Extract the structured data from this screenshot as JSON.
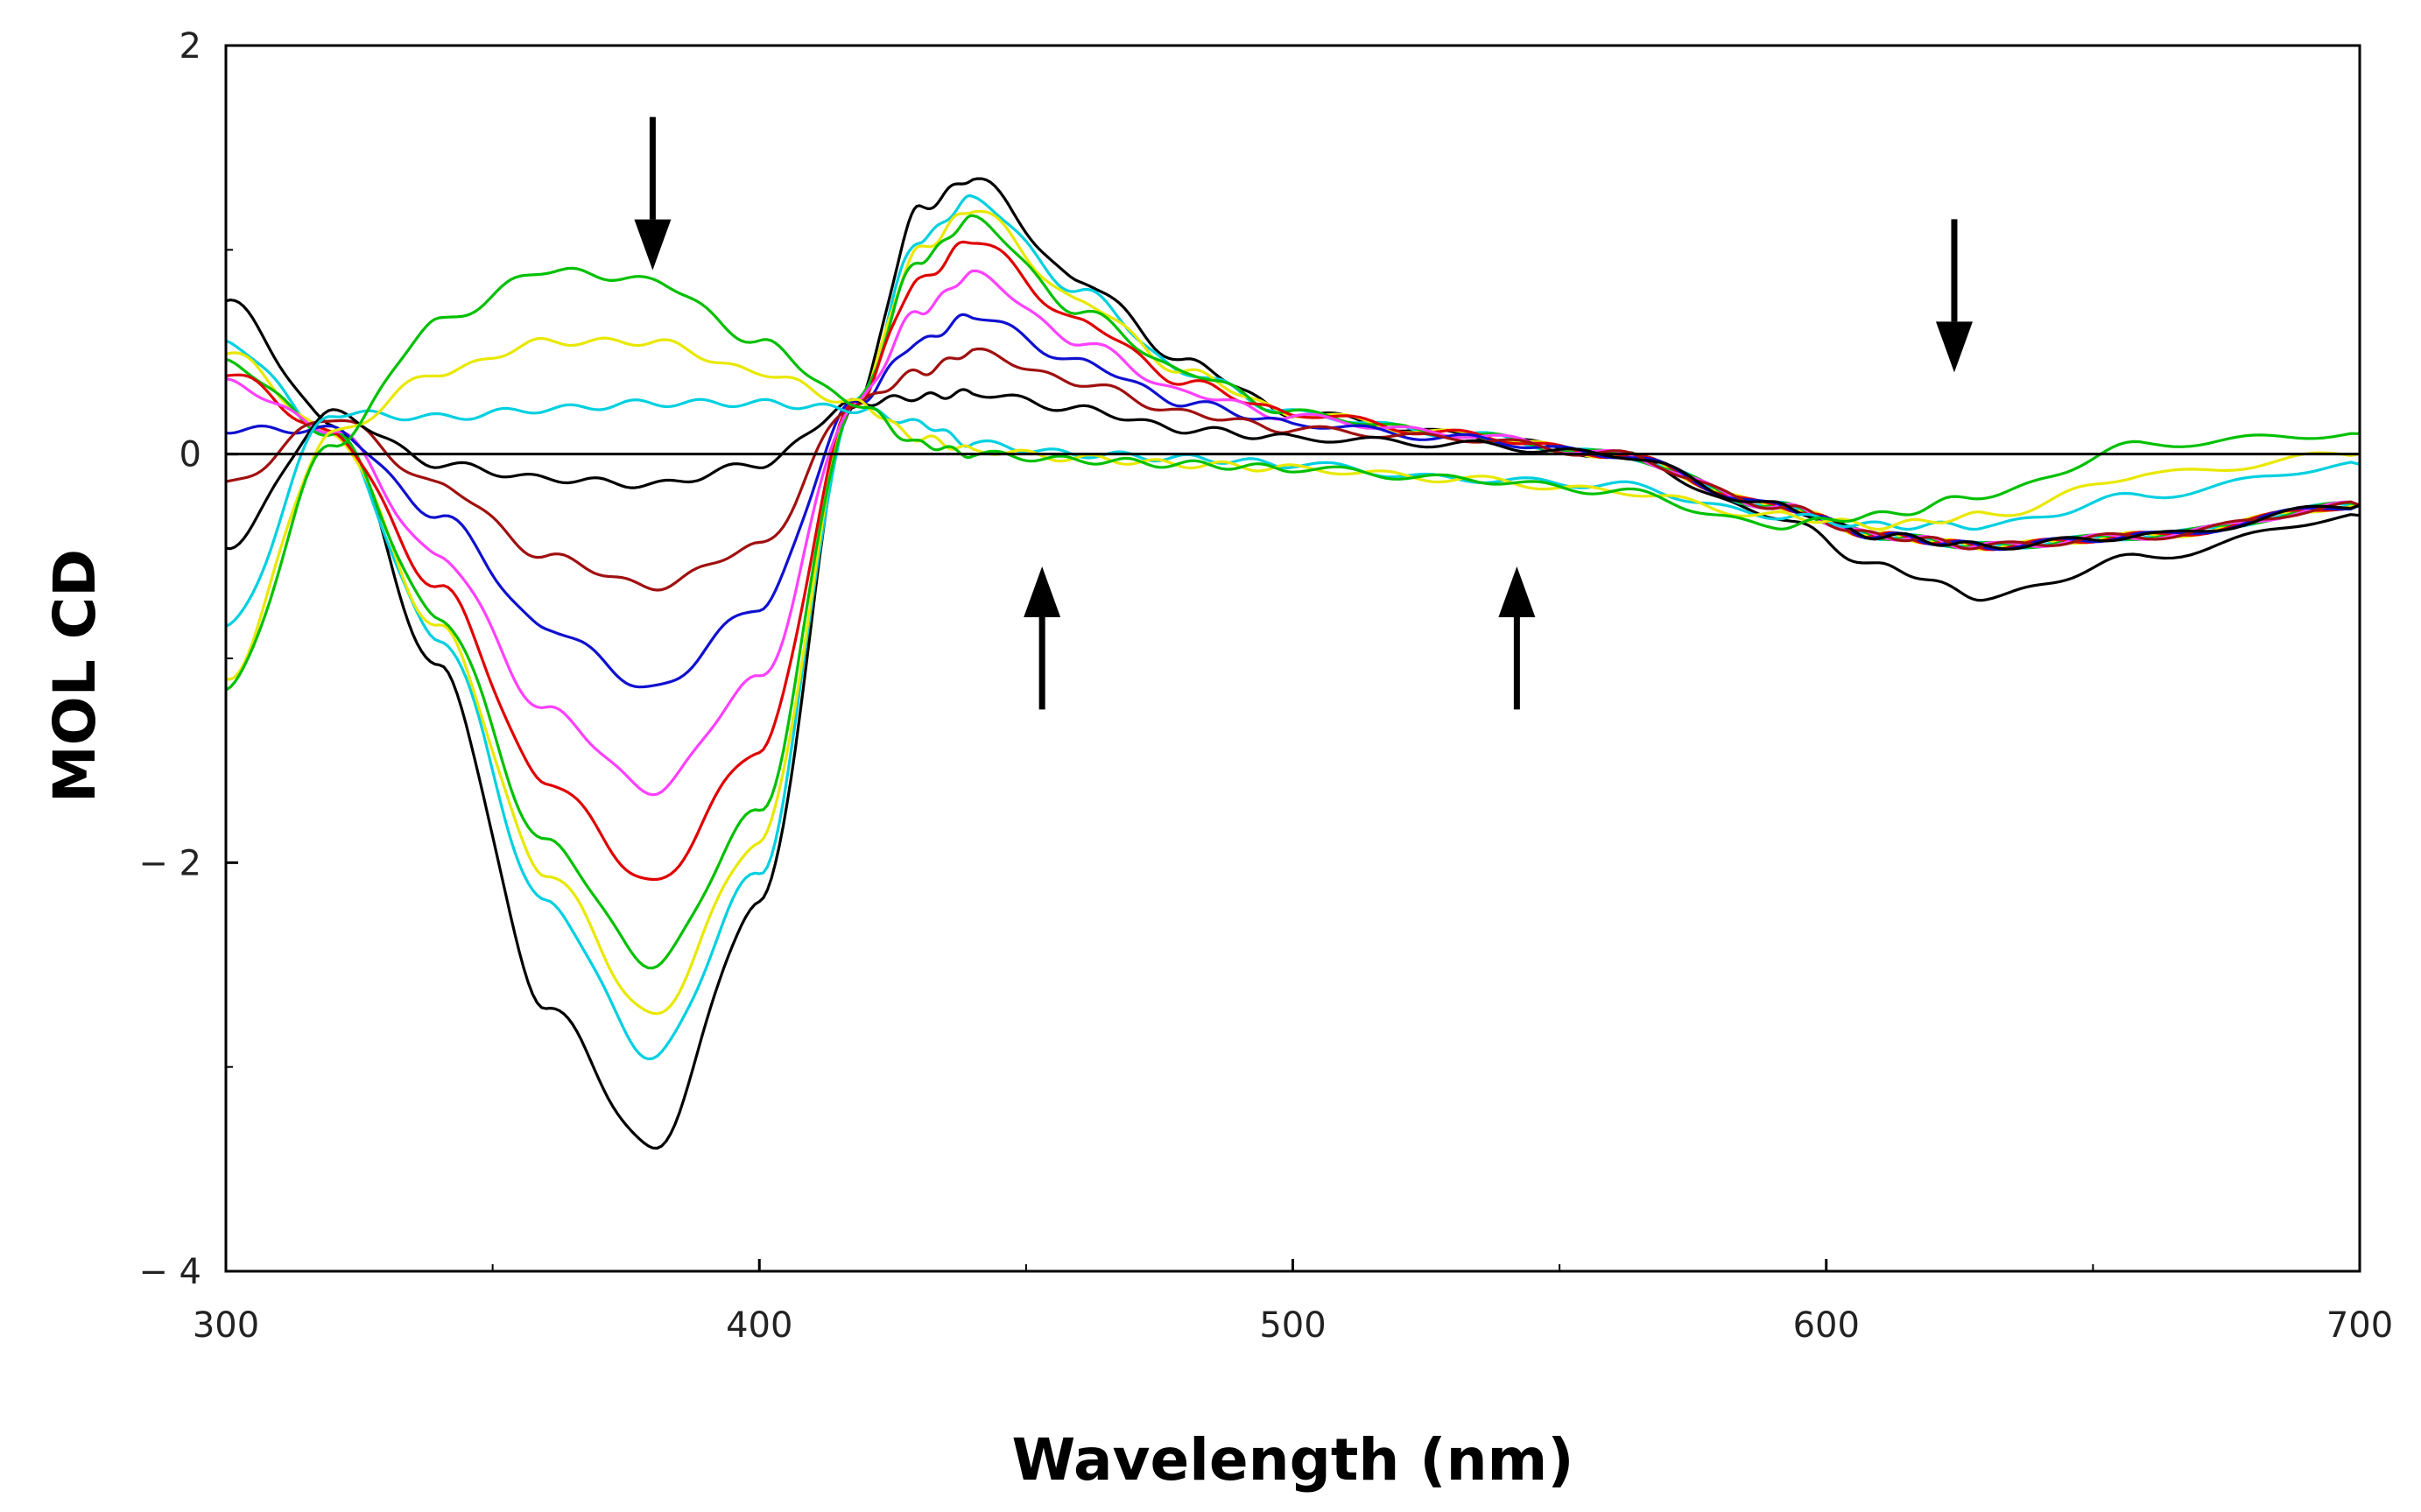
{
  "chart_data": {
    "type": "line",
    "title": "",
    "xlabel": "Wavelength (nm)",
    "ylabel": "MOL CD",
    "xlim": [
      300,
      700
    ],
    "ylim": [
      -4,
      2
    ],
    "x_ticks": [
      300,
      400,
      500,
      600,
      700
    ],
    "y_ticks": [
      2,
      0,
      -2,
      -4
    ],
    "x_tick_labels": [
      "300",
      "400",
      "500",
      "600",
      "700"
    ],
    "y_tick_labels": [
      "2",
      "0",
      "− 2",
      "− 4"
    ],
    "grid": false,
    "legend": "none",
    "x": [
      300,
      320,
      340,
      360,
      380,
      400,
      418,
      430,
      440,
      460,
      480,
      500,
      530,
      560,
      590,
      610,
      630,
      660,
      700
    ],
    "series": [
      {
        "name": "black-start",
        "color": "#000000",
        "values": [
          0.75,
          0.15,
          -1.05,
          -2.7,
          -3.4,
          -2.2,
          0.25,
          1.2,
          1.35,
          0.85,
          0.45,
          0.2,
          0.1,
          0.0,
          -0.3,
          -0.55,
          -0.7,
          -0.5,
          -0.3
        ]
      },
      {
        "name": "cyan-1",
        "color": "#00d0e0",
        "values": [
          0.55,
          0.1,
          -0.9,
          -2.2,
          -2.95,
          -2.05,
          0.25,
          1.05,
          1.25,
          0.8,
          0.4,
          0.2,
          0.1,
          0.0,
          -0.25,
          -0.4,
          -0.45,
          -0.4,
          -0.25
        ]
      },
      {
        "name": "yellow-1",
        "color": "#e8e800",
        "values": [
          0.5,
          0.1,
          -0.85,
          -2.05,
          -2.75,
          -1.9,
          0.25,
          1.0,
          1.2,
          0.75,
          0.4,
          0.2,
          0.1,
          0.0,
          -0.25,
          -0.4,
          -0.45,
          -0.4,
          -0.25
        ]
      },
      {
        "name": "green-1",
        "color": "#00c000",
        "values": [
          0.45,
          0.1,
          -0.8,
          -1.9,
          -2.5,
          -1.75,
          0.25,
          0.95,
          1.15,
          0.7,
          0.4,
          0.2,
          0.1,
          0.0,
          -0.25,
          -0.4,
          -0.45,
          -0.4,
          -0.25
        ]
      },
      {
        "name": "red",
        "color": "#e00000",
        "values": [
          0.4,
          0.1,
          -0.65,
          -1.6,
          -2.1,
          -1.45,
          0.25,
          0.85,
          1.05,
          0.65,
          0.35,
          0.2,
          0.1,
          0.0,
          -0.25,
          -0.4,
          -0.45,
          -0.4,
          -0.25
        ]
      },
      {
        "name": "magenta",
        "color": "#ff40ff",
        "values": [
          0.35,
          0.12,
          -0.5,
          -1.25,
          -1.65,
          -1.1,
          0.25,
          0.7,
          0.88,
          0.55,
          0.3,
          0.18,
          0.1,
          0.0,
          -0.25,
          -0.4,
          -0.45,
          -0.4,
          -0.25
        ]
      },
      {
        "name": "blue",
        "color": "#1010d0",
        "values": [
          0.12,
          0.12,
          -0.3,
          -0.85,
          -1.15,
          -0.75,
          0.25,
          0.55,
          0.68,
          0.45,
          0.25,
          0.15,
          0.08,
          0.0,
          -0.25,
          -0.4,
          -0.45,
          -0.4,
          -0.25
        ]
      },
      {
        "name": "dark-red",
        "color": "#a01010",
        "values": [
          -0.15,
          0.18,
          -0.15,
          -0.5,
          -0.65,
          -0.45,
          0.25,
          0.4,
          0.5,
          0.35,
          0.2,
          0.12,
          0.08,
          0.0,
          -0.25,
          -0.4,
          -0.45,
          -0.4,
          -0.25
        ]
      },
      {
        "name": "black-mid",
        "color": "#000000",
        "values": [
          -0.45,
          0.2,
          -0.05,
          -0.12,
          -0.15,
          -0.05,
          0.25,
          0.28,
          0.3,
          0.22,
          0.12,
          0.08,
          0.05,
          0.0,
          -0.25,
          -0.4,
          -0.45,
          -0.4,
          -0.25
        ]
      },
      {
        "name": "cyan-2",
        "color": "#00d0e0",
        "values": [
          -0.85,
          0.2,
          0.18,
          0.22,
          0.25,
          0.25,
          0.22,
          0.15,
          0.05,
          0.0,
          -0.02,
          -0.05,
          -0.12,
          -0.15,
          -0.3,
          -0.35,
          -0.35,
          -0.2,
          -0.05
        ]
      },
      {
        "name": "yellow-2",
        "color": "#e8e800",
        "values": [
          -1.1,
          0.1,
          0.4,
          0.55,
          0.55,
          0.4,
          0.25,
          0.08,
          0.02,
          -0.02,
          -0.05,
          -0.07,
          -0.12,
          -0.18,
          -0.3,
          -0.35,
          -0.3,
          -0.1,
          0.0
        ]
      },
      {
        "name": "green-2",
        "color": "#00c000",
        "values": [
          -1.15,
          0.05,
          0.65,
          0.9,
          0.85,
          0.55,
          0.25,
          0.05,
          0.0,
          -0.03,
          -0.05,
          -0.07,
          -0.12,
          -0.18,
          -0.35,
          -0.3,
          -0.2,
          0.05,
          0.1
        ]
      }
    ],
    "annotations": [
      {
        "type": "arrow",
        "direction": "down",
        "x": 380,
        "y_from": 1.65,
        "y_to": 0.9
      },
      {
        "type": "arrow",
        "direction": "up",
        "x": 453,
        "y_from": -1.25,
        "y_to": -0.55
      },
      {
        "type": "arrow",
        "direction": "up",
        "x": 542,
        "y_from": -1.25,
        "y_to": -0.55
      },
      {
        "type": "arrow",
        "direction": "down",
        "x": 624,
        "y_from": 1.15,
        "y_to": 0.4
      }
    ]
  }
}
